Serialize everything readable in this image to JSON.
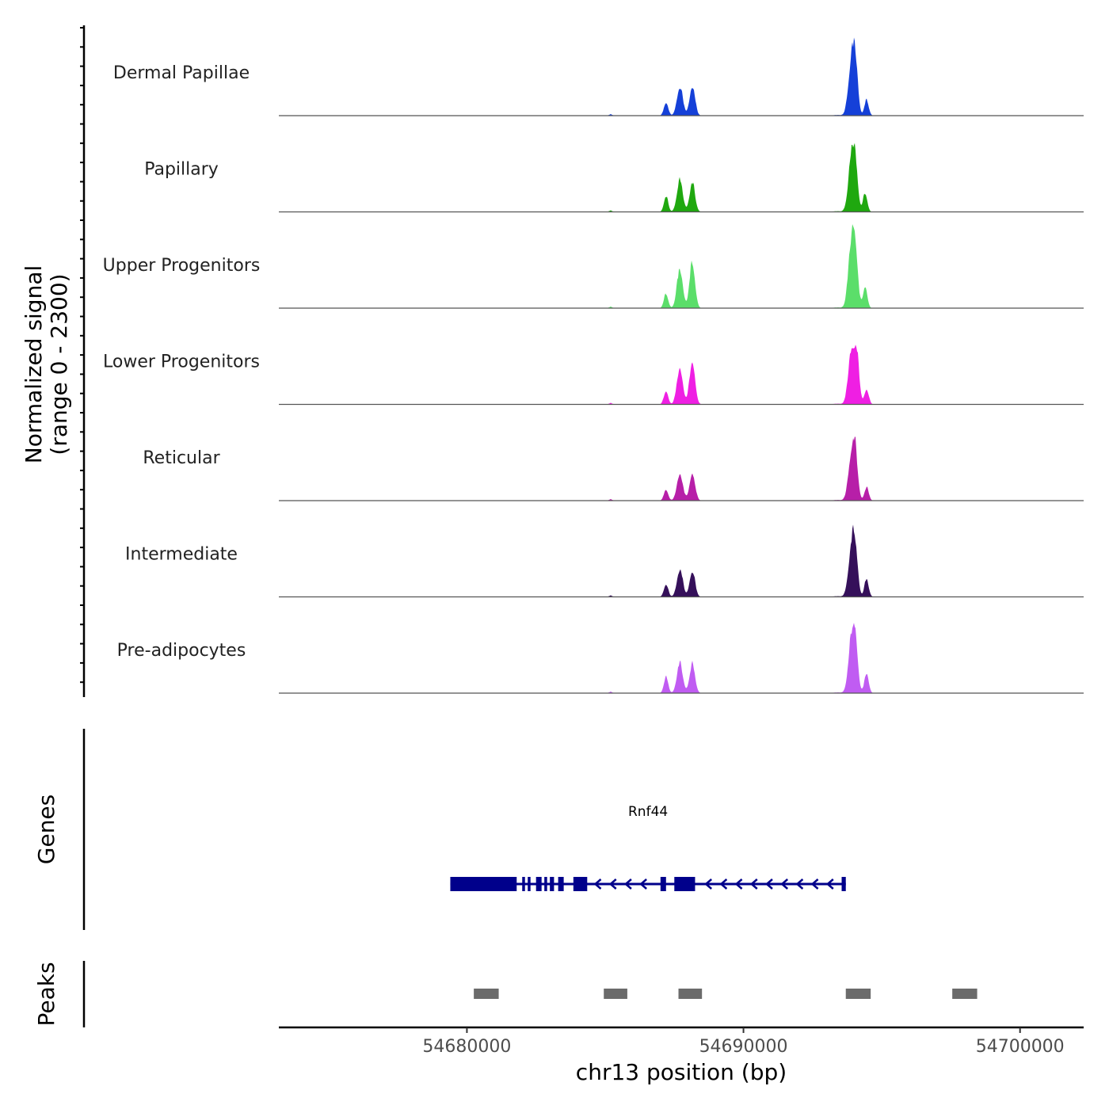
{
  "chart_data": {
    "type": "area",
    "title": "",
    "region": {
      "chrom": "chr13",
      "start": 54673200,
      "end": 54702300
    },
    "signal_ylabel": "Normalized signal\n(range 0 - 2300)",
    "ylim": [
      0,
      2300
    ],
    "xlabel": "chr13 position (bp)",
    "xticks": [
      54680000,
      54690000,
      54700000
    ],
    "xtick_labels": [
      "54680000",
      "54690000",
      "54700000"
    ],
    "baseline_color": "#555555",
    "peak_positions": [
      54687300,
      54687750,
      54688200,
      54693700,
      54694000,
      54694500
    ],
    "tracks": [
      {
        "name": "Dermal Papillae",
        "color": "#1540d8",
        "peaks": [
          [
            54687200,
            500
          ],
          [
            54687700,
            1080
          ],
          [
            54688150,
            1100
          ],
          [
            54693900,
            1920
          ],
          [
            54694050,
            1700
          ],
          [
            54694450,
            580
          ]
        ]
      },
      {
        "name": "Papillary",
        "color": "#1fa80f",
        "peaks": [
          [
            54687200,
            580
          ],
          [
            54687700,
            1180
          ],
          [
            54688150,
            1080
          ],
          [
            54693900,
            1900
          ],
          [
            54694050,
            1500
          ],
          [
            54694400,
            700
          ]
        ]
      },
      {
        "name": "Upper Progenitors",
        "color": "#5bde6a",
        "peaks": [
          [
            54687200,
            530
          ],
          [
            54687700,
            1460
          ],
          [
            54688150,
            1700
          ],
          [
            54693900,
            2300
          ],
          [
            54694050,
            1800
          ],
          [
            54694400,
            820
          ]
        ]
      },
      {
        "name": "Lower Progenitors",
        "color": "#ef1fe3",
        "peaks": [
          [
            54687200,
            500
          ],
          [
            54687700,
            1380
          ],
          [
            54688150,
            1650
          ],
          [
            54693900,
            1980
          ],
          [
            54694100,
            1650
          ],
          [
            54694450,
            580
          ]
        ]
      },
      {
        "name": "Reticular",
        "color": "#b71fa8",
        "peaks": [
          [
            54687200,
            420
          ],
          [
            54687700,
            1020
          ],
          [
            54688150,
            1040
          ],
          [
            54693900,
            1620
          ],
          [
            54694050,
            1450
          ],
          [
            54694450,
            500
          ]
        ]
      },
      {
        "name": "Intermediate",
        "color": "#35105a",
        "peaks": [
          [
            54687200,
            480
          ],
          [
            54687700,
            1020
          ],
          [
            54688150,
            960
          ],
          [
            54693900,
            1720
          ],
          [
            54694050,
            1500
          ],
          [
            54694450,
            660
          ]
        ]
      },
      {
        "name": "Pre-adipocytes",
        "color": "#c05cf2",
        "peaks": [
          [
            54687200,
            600
          ],
          [
            54687700,
            1120
          ],
          [
            54688150,
            1080
          ],
          [
            54693900,
            1820
          ],
          [
            54694050,
            1700
          ],
          [
            54694450,
            760
          ]
        ]
      }
    ],
    "genes": {
      "title": "Genes",
      "color": "#00008b",
      "items": [
        {
          "name": "Rnf44",
          "start": 54679400,
          "end": 54693700,
          "strand": "-",
          "exons": [
            [
              54679400,
              54681800
            ],
            [
              54682000,
              54682100
            ],
            [
              54682200,
              54682300
            ],
            [
              54682500,
              54682700
            ],
            [
              54682800,
              54682900
            ],
            [
              54683000,
              54683150
            ],
            [
              54683300,
              54683500
            ],
            [
              54683850,
              54684350
            ],
            [
              54687000,
              54687200
            ],
            [
              54687500,
              54688250
            ],
            [
              54693550,
              54693700
            ]
          ]
        }
      ]
    },
    "peaks_track": {
      "title": "Peaks",
      "color": "#6b6b6b",
      "regions": [
        [
          54680250,
          54681150
        ],
        [
          54684950,
          54685800
        ],
        [
          54687650,
          54688500
        ],
        [
          54693700,
          54694600
        ],
        [
          54697550,
          54698450
        ]
      ]
    }
  }
}
